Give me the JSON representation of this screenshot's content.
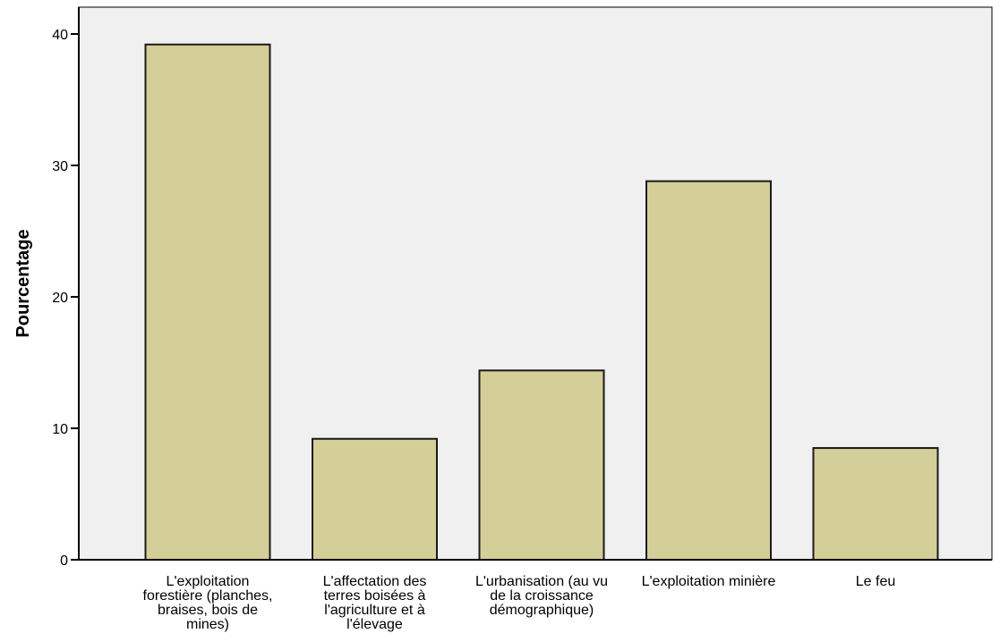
{
  "chart_data": {
    "type": "bar",
    "title": "",
    "xlabel": "",
    "ylabel": "Pourcentage",
    "ylim": [
      0,
      40
    ],
    "yticks": [
      0,
      10,
      20,
      30,
      40
    ],
    "grid": false,
    "categories": [
      "L'exploitation forestière (planches, braises, bois de mines)",
      "L'affectation des terres boisées à l'agriculture et à l'élevage",
      "L'urbanisation (au vu de la croissance démographique)",
      "L'exploitation minière",
      "Le feu"
    ],
    "category_lines": [
      [
        "L'exploitation",
        "forestière (planches,",
        "braises, bois de",
        "mines)"
      ],
      [
        "L'affectation des",
        "terres boisées à",
        "l'agriculture et à",
        "l'élevage"
      ],
      [
        "L'urbanisation (au vu",
        "de la croissance",
        "démographique)"
      ],
      [
        "L'exploitation minière"
      ],
      [
        "Le feu"
      ]
    ],
    "values": [
      39.2,
      9.2,
      14.4,
      28.8,
      8.5
    ],
    "colors": {
      "bar_fill": "#d4ce98",
      "bar_stroke": "#1a1a1a",
      "plot_background": "#f0f0f0",
      "axis": "#000000"
    }
  }
}
